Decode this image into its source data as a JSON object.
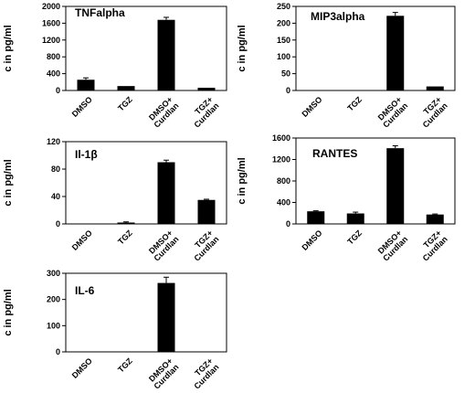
{
  "chart_data": [
    {
      "type": "bar",
      "title": "TNFalpha",
      "ylabel": "c in pg/ml",
      "categories": [
        "DMSO",
        "TGZ",
        "DMSO+|Curdlan",
        "TGZ+|Curdlan"
      ],
      "values": [
        255,
        105,
        1680,
        65
      ],
      "errors": [
        45,
        0,
        60,
        0
      ],
      "ylim": [
        0,
        2000
      ],
      "yticks": [
        0,
        400,
        800,
        1200,
        1600,
        2000
      ]
    },
    {
      "type": "bar",
      "title": "MIP3alpha",
      "ylabel": "c in pg/ml",
      "categories": [
        "DMSO",
        "TGZ",
        "DMSO+|Curdlan",
        "TGZ+|Curdlan"
      ],
      "values": [
        0,
        0,
        222,
        12
      ],
      "errors": [
        0,
        0,
        10,
        0
      ],
      "ylim": [
        0,
        250
      ],
      "yticks": [
        0,
        50,
        100,
        150,
        200,
        250
      ]
    },
    {
      "type": "bar",
      "title": "Il-1β",
      "ylabel": "c in pg/ml",
      "categories": [
        "DMSO",
        "TGZ",
        "DMSO+|Curdlan",
        "TGZ+|Curdlan"
      ],
      "values": [
        0,
        2,
        90,
        35
      ],
      "errors": [
        0,
        1,
        3,
        1
      ],
      "ylim": [
        0,
        120
      ],
      "yticks": [
        0,
        40,
        80,
        120
      ]
    },
    {
      "type": "bar",
      "title": "RANTES",
      "ylabel": "c in pg/ml",
      "categories": [
        "DMSO",
        "TGZ",
        "DMSO+|Curdlan",
        "TGZ+|Curdlan"
      ],
      "values": [
        235,
        195,
        1410,
        175
      ],
      "errors": [
        10,
        25,
        45,
        10
      ],
      "ylim": [
        0,
        1600
      ],
      "yticks": [
        0,
        400,
        800,
        1200,
        1600
      ]
    },
    {
      "type": "bar",
      "title": "IL-6",
      "ylabel": "c in pg/ml",
      "categories": [
        "DMSO",
        "TGZ",
        "DMSO+|Curdlan",
        "TGZ+|Curdlan"
      ],
      "values": [
        0,
        0,
        263,
        0
      ],
      "errors": [
        0,
        0,
        22,
        0
      ],
      "ylim": [
        0,
        300
      ],
      "yticks": [
        0,
        100,
        200,
        300
      ]
    }
  ]
}
